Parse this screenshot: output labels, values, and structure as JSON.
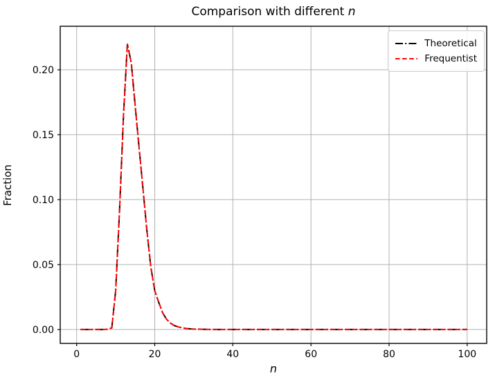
{
  "figure": {
    "title_prefix": "Comparison with different ",
    "title_var": "n",
    "background": "#ffffff"
  },
  "chart_data": {
    "type": "line",
    "title": "Comparison with different n",
    "xlabel": "n",
    "ylabel": "Fraction",
    "xlim": [
      -4.2,
      105.0
    ],
    "ylim": [
      -0.0107,
      0.2335
    ],
    "x_ticks": [
      0,
      20,
      40,
      60,
      80,
      100
    ],
    "x_tick_labels": [
      "0",
      "20",
      "40",
      "60",
      "80",
      "100"
    ],
    "y_ticks": [
      0.0,
      0.05,
      0.1,
      0.15,
      0.2
    ],
    "y_tick_labels": [
      "0.00",
      "0.05",
      "0.10",
      "0.15",
      "0.20"
    ],
    "grid": true,
    "grid_color": "#b0b0b0",
    "spine_color": "#000000",
    "legend": {
      "position": "upper right",
      "border_color": "#cccccc"
    },
    "x": [
      1,
      2,
      3,
      4,
      5,
      6,
      7,
      8,
      9,
      10,
      11,
      12,
      13,
      14,
      15,
      16,
      17,
      18,
      19,
      20,
      21,
      22,
      23,
      24,
      25,
      26,
      27,
      28,
      29,
      30,
      35,
      40,
      50,
      60,
      70,
      80,
      90,
      100
    ],
    "series": [
      {
        "name": "Theoretical",
        "color": "#000000",
        "dash": "dashdot",
        "line_width": 2,
        "values": [
          0,
          0,
          0,
          0,
          0,
          0,
          0,
          0.0002,
          0.0012,
          0.03,
          0.092,
          0.165,
          0.22,
          0.205,
          0.172,
          0.14,
          0.108,
          0.076,
          0.048,
          0.03,
          0.021,
          0.013,
          0.008,
          0.005,
          0.003,
          0.002,
          0.0013,
          0.0008,
          0.0005,
          0.0003,
          0,
          0,
          0,
          0,
          0,
          0,
          0,
          0
        ]
      },
      {
        "name": "Frequentist",
        "color": "#ff0000",
        "dash": "dashed",
        "line_width": 2,
        "values": [
          0,
          0,
          0,
          0,
          0,
          0,
          0,
          0.0002,
          0.0012,
          0.03,
          0.092,
          0.165,
          0.22,
          0.205,
          0.172,
          0.14,
          0.108,
          0.076,
          0.048,
          0.03,
          0.021,
          0.013,
          0.008,
          0.005,
          0.003,
          0.002,
          0.0013,
          0.0008,
          0.0005,
          0.0003,
          0,
          0,
          0,
          0,
          0,
          0,
          0,
          0
        ]
      }
    ]
  }
}
